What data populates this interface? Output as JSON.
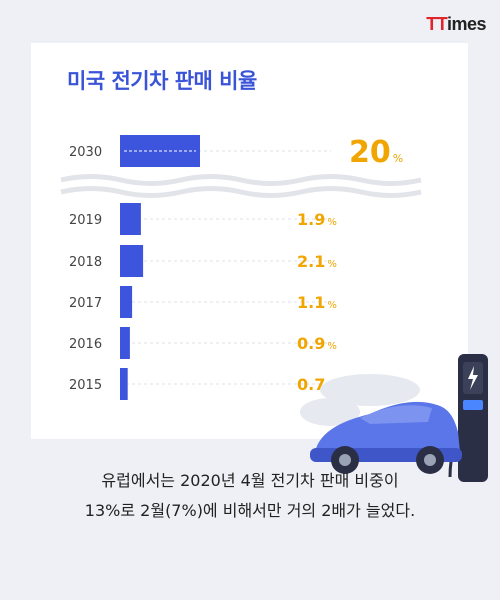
{
  "brand": {
    "logo_prefix": "TT",
    "logo_suffix": "imes"
  },
  "chart_data": {
    "type": "bar",
    "orientation": "horizontal",
    "title": "미국 전기차 판매 비율",
    "categories": [
      "2030",
      "2019",
      "2018",
      "2017",
      "2016",
      "2015"
    ],
    "values": [
      20,
      1.9,
      2.1,
      1.1,
      0.9,
      0.7
    ],
    "value_labels": [
      "20",
      "1.9",
      "2.1",
      "1.1",
      "0.9",
      "0.7"
    ],
    "unit": "%",
    "axis_break_after": "2030",
    "colors": {
      "bar": "#3d55dc",
      "value": "#f0a500",
      "title": "#3a54d8"
    }
  },
  "caption": {
    "line1": "유럽에서는 2020년 4월 전기차 판매 비중이",
    "line2": "13%로 2월(7%)에 비해서만 거의 2배가 늘었다."
  }
}
